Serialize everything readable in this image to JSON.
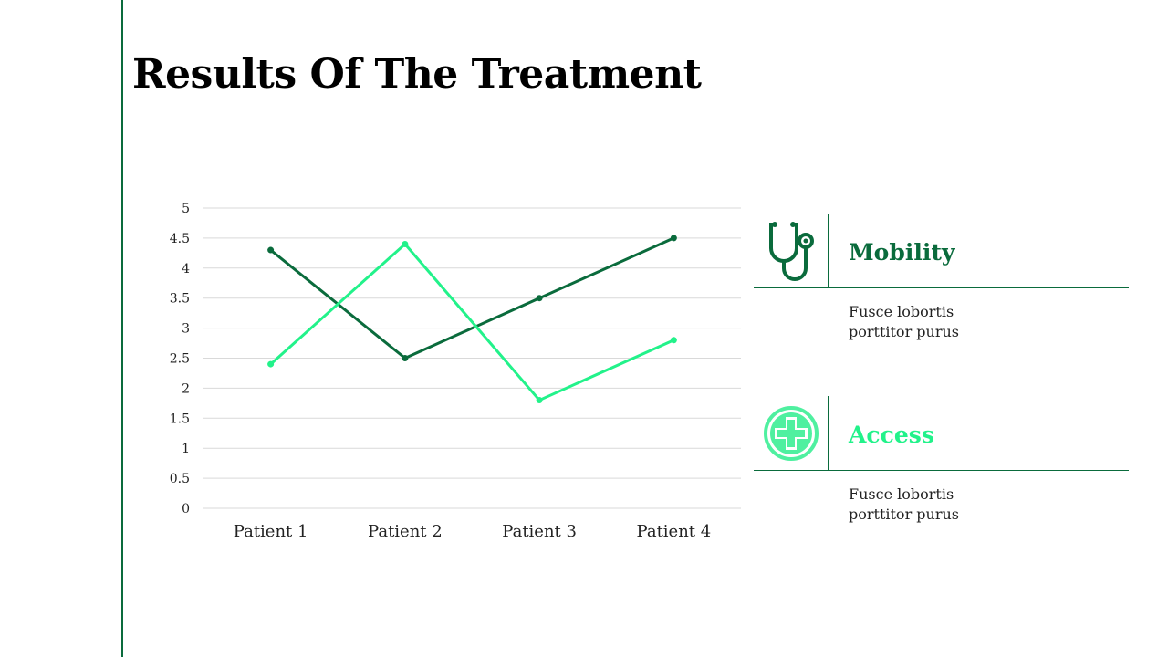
{
  "slide": {
    "title": "Results Of The Treatment"
  },
  "colors": {
    "dark_green": "#0a6b3c",
    "light_green": "#22f28a",
    "grid": "#d9d9d9"
  },
  "chart_data": {
    "type": "line",
    "categories": [
      "Patient 1",
      "Patient 2",
      "Patient 3",
      "Patient 4"
    ],
    "series": [
      {
        "values": [
          4.3,
          2.5,
          3.5,
          4.5
        ],
        "color": "#0a6b3c"
      },
      {
        "values": [
          2.4,
          4.4,
          1.8,
          2.8
        ],
        "color": "#22f28a"
      }
    ],
    "ylim": [
      0,
      5
    ],
    "yticks": [
      "0",
      "0.5",
      "1",
      "1.5",
      "2",
      "2.5",
      "3",
      "3.5",
      "4",
      "4.5",
      "5"
    ],
    "grid": true,
    "legend": "none"
  },
  "panels": [
    {
      "title": "Mobility",
      "icon": "stethoscope-icon",
      "color": "#0a6b3c",
      "description": "Fusce lobortis porttitor purus"
    },
    {
      "title": "Access",
      "icon": "medical-cross-icon",
      "color": "#22f28a",
      "description": "Fusce lobortis porttitor purus"
    }
  ]
}
